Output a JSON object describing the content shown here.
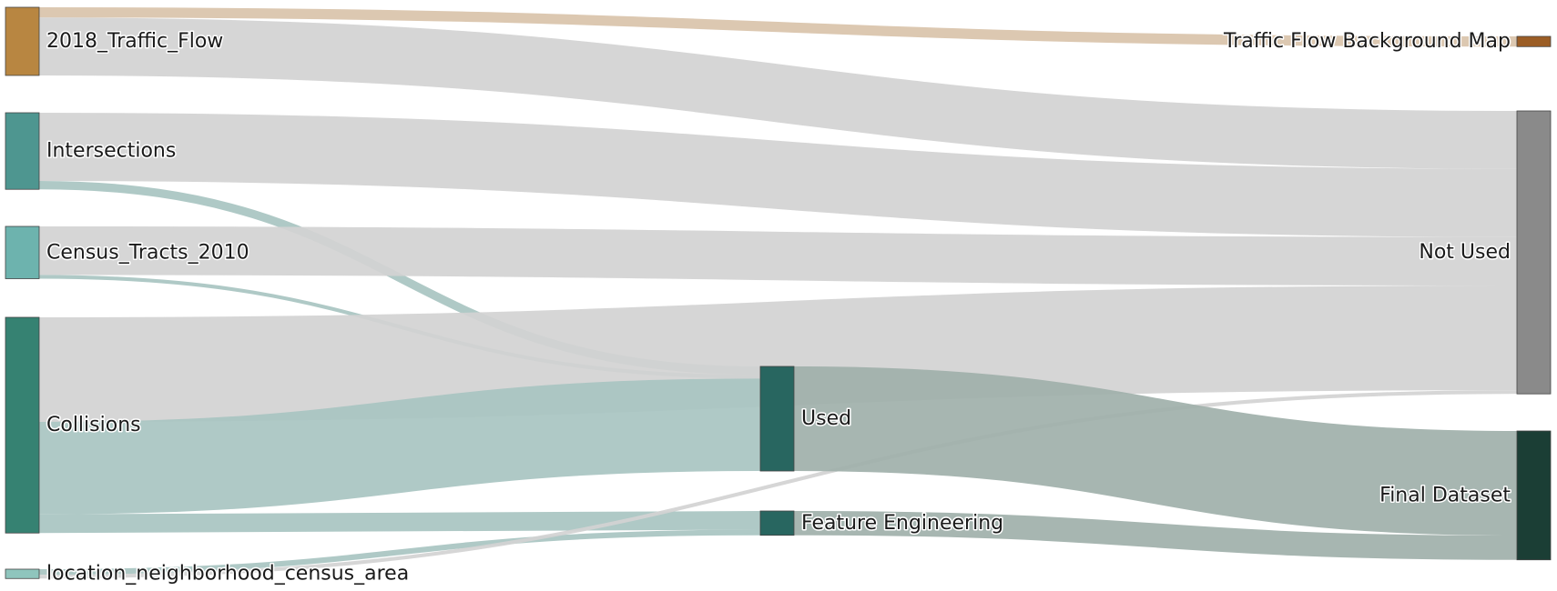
{
  "chart_data": {
    "type": "sankey",
    "nodes": [
      {
        "id": "traffic_flow",
        "label": "2018_Traffic_Flow",
        "color": "#b88641"
      },
      {
        "id": "intersections",
        "label": "Intersections",
        "color": "#4e9690"
      },
      {
        "id": "census_tracts",
        "label": "Census_Tracts_2010",
        "color": "#6db3ae"
      },
      {
        "id": "collisions",
        "label": "Collisions",
        "color": "#368272"
      },
      {
        "id": "neighborhood",
        "label": "location_neighborhood_census_area",
        "color": "#8fc5bd"
      },
      {
        "id": "used",
        "label": "Used",
        "color": "#286660"
      },
      {
        "id": "feature_eng",
        "label": "Feature Engineering",
        "color": "#286660"
      },
      {
        "id": "bg_map",
        "label": "Traffic Flow Background Map",
        "color": "#9b5d25"
      },
      {
        "id": "not_used",
        "label": "Not Used",
        "color": "#8a8a8a"
      },
      {
        "id": "final",
        "label": "Final Dataset",
        "color": "#1b3e35"
      }
    ],
    "links": [
      {
        "source": "traffic_flow",
        "target": "bg_map",
        "value": 1.1,
        "color": "#d9c3aa"
      },
      {
        "source": "traffic_flow",
        "target": "not_used",
        "value": 6.2,
        "color": "#d3d3d3"
      },
      {
        "source": "intersections",
        "target": "not_used",
        "value": 7.3,
        "color": "#d3d3d3"
      },
      {
        "source": "intersections",
        "target": "used",
        "value": 0.9,
        "color": "#a8c4c1"
      },
      {
        "source": "census_tracts",
        "target": "not_used",
        "value": 5.2,
        "color": "#d3d3d3"
      },
      {
        "source": "census_tracts",
        "target": "used",
        "value": 0.4,
        "color": "#a8c4c1"
      },
      {
        "source": "collisions",
        "target": "not_used",
        "value": 11.2,
        "color": "#d3d3d3"
      },
      {
        "source": "collisions",
        "target": "used",
        "value": 9.9,
        "color": "#a8c4c1"
      },
      {
        "source": "collisions",
        "target": "feature_eng",
        "value": 2.0,
        "color": "#a8c4c1"
      },
      {
        "source": "neighborhood",
        "target": "feature_eng",
        "value": 0.6,
        "color": "#a8c4c1"
      },
      {
        "source": "neighborhood",
        "target": "not_used",
        "value": 0.4,
        "color": "#d3d3d3"
      },
      {
        "source": "used",
        "target": "final",
        "value": 11.2,
        "color": "#a0b0aa"
      },
      {
        "source": "feature_eng",
        "target": "final",
        "value": 2.6,
        "color": "#a0b0aa"
      }
    ]
  }
}
